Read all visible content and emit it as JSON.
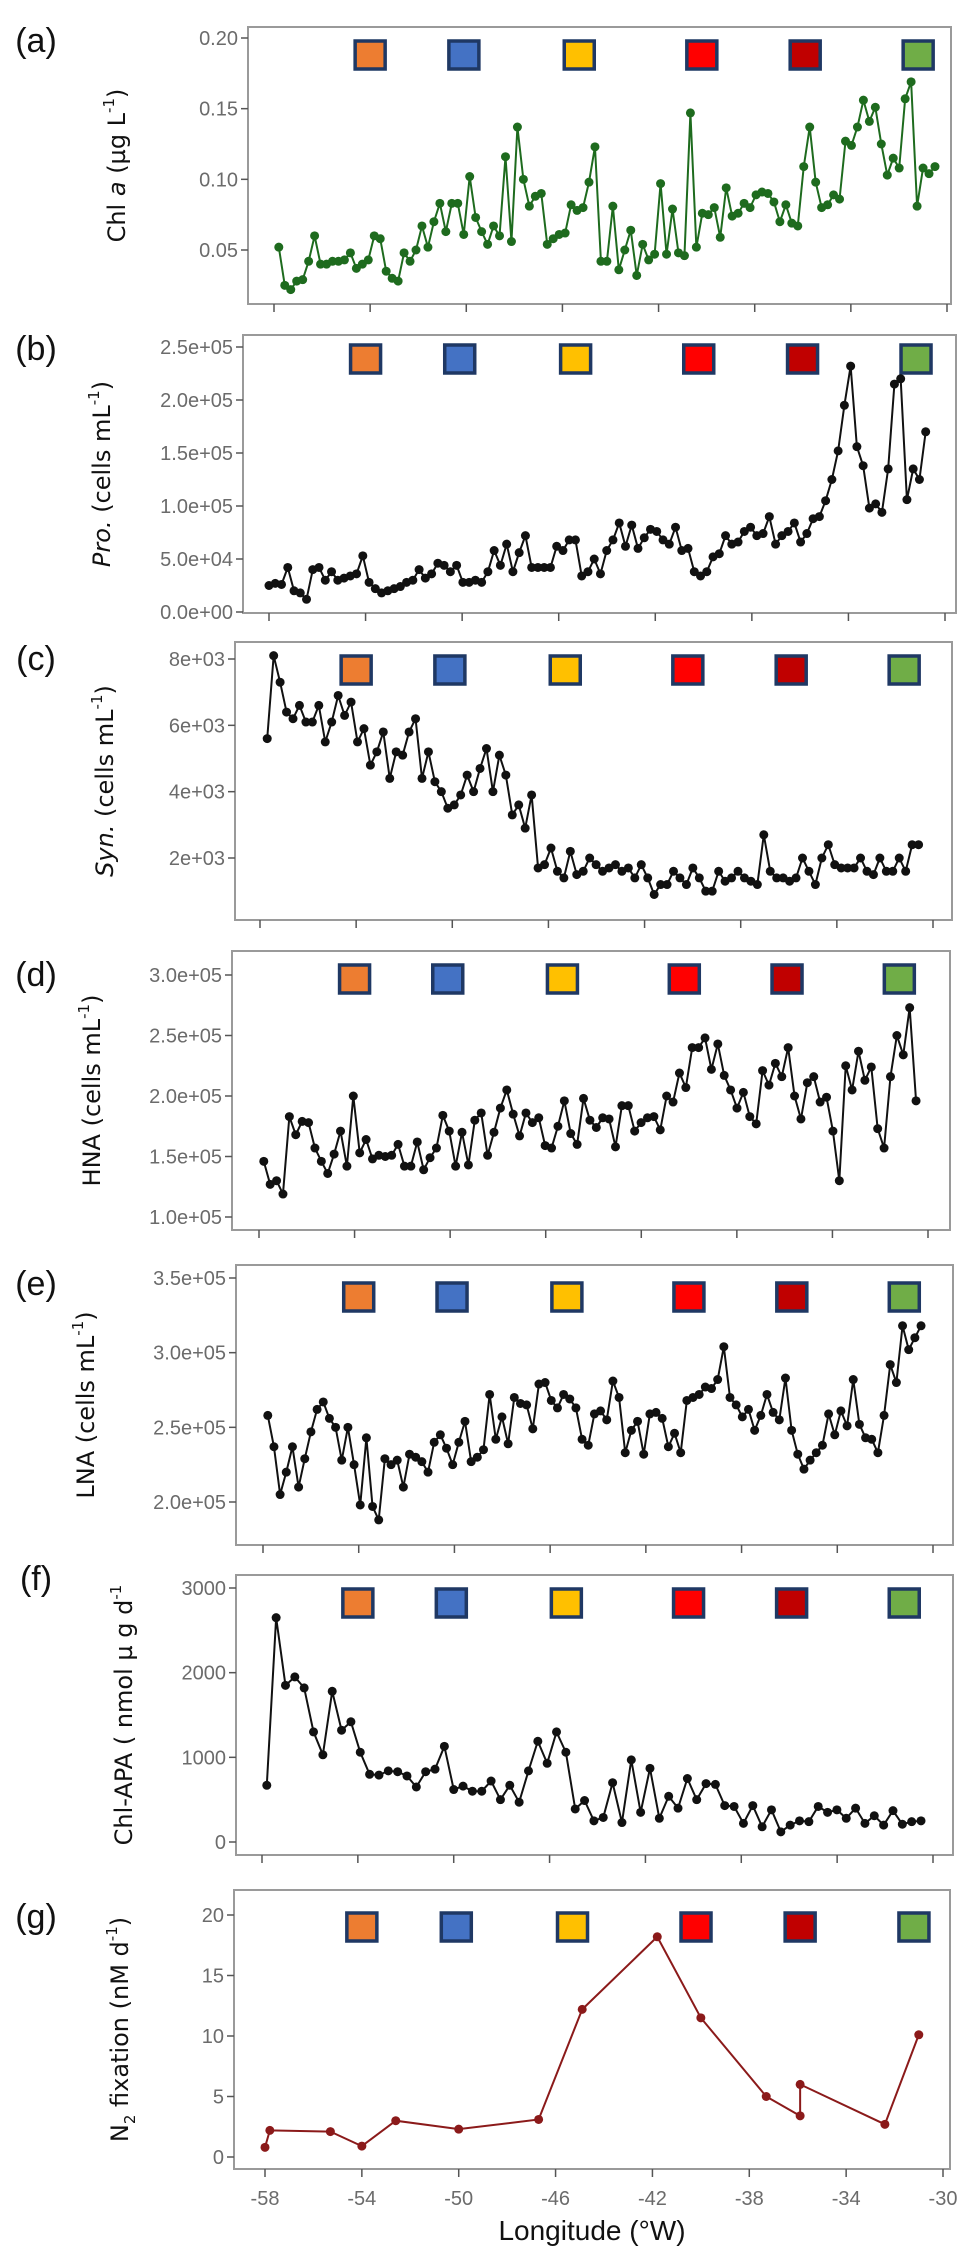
{
  "chart_data": [
    {
      "type": "line",
      "panel": "(a)",
      "ylabel": [
        {
          "t": "Chl "
        },
        {
          "t": "a",
          "i": true
        },
        {
          "t": " (µg L"
        },
        {
          "t": "-1",
          "sup": true
        },
        {
          "t": ")"
        }
      ],
      "yticks": [
        0.05,
        0.1,
        0.15,
        0.2
      ],
      "ytick_labels": [
        "0.05",
        "0.10",
        "0.15",
        "0.20"
      ],
      "color": "#1e6b1e",
      "x_first": -57.8,
      "x_last": -30.5,
      "values": [
        0.052,
        0.025,
        0.022,
        0.028,
        0.029,
        0.042,
        0.06,
        0.04,
        0.04,
        0.042,
        0.042,
        0.043,
        0.048,
        0.037,
        0.04,
        0.043,
        0.06,
        0.058,
        0.035,
        0.03,
        0.028,
        0.048,
        0.042,
        0.05,
        0.067,
        0.052,
        0.07,
        0.083,
        0.063,
        0.083,
        0.083,
        0.061,
        0.102,
        0.073,
        0.063,
        0.054,
        0.067,
        0.06,
        0.116,
        0.056,
        0.137,
        0.1,
        0.081,
        0.088,
        0.09,
        0.054,
        0.058,
        0.061,
        0.062,
        0.082,
        0.078,
        0.08,
        0.098,
        0.123,
        0.042,
        0.042,
        0.081,
        0.036,
        0.05,
        0.064,
        0.032,
        0.054,
        0.043,
        0.047,
        0.097,
        0.047,
        0.079,
        0.048,
        0.046,
        0.147,
        0.052,
        0.076,
        0.075,
        0.08,
        0.059,
        0.094,
        0.074,
        0.076,
        0.083,
        0.08,
        0.089,
        0.091,
        0.09,
        0.084,
        0.07,
        0.082,
        0.069,
        0.067,
        0.109,
        0.137,
        0.098,
        0.08,
        0.082,
        0.089,
        0.086,
        0.127,
        0.124,
        0.137,
        0.156,
        0.141,
        0.151,
        0.125,
        0.103,
        0.115,
        0.108,
        0.157,
        0.169,
        0.081,
        0.108,
        0.104,
        0.109
      ]
    },
    {
      "type": "line",
      "panel": "(b)",
      "ylabel": [
        {
          "t": "Pro.",
          "i": true
        },
        {
          "t": " (cells mL"
        },
        {
          "t": "-1",
          "sup": true
        },
        {
          "t": ")"
        }
      ],
      "yticks": [
        0,
        50000,
        100000,
        150000,
        200000,
        250000
      ],
      "ytick_labels": [
        "0.0e+00",
        "5.0e+04",
        "1.0e+05",
        "1.5e+05",
        "2.0e+05",
        "2.5e+05"
      ],
      "color": "#111111",
      "x_first": -58.0,
      "x_last": -30.8,
      "values": [
        25000,
        27000,
        26000,
        42000,
        20000,
        18000,
        12000,
        40000,
        42000,
        30000,
        38000,
        30000,
        32000,
        34000,
        36000,
        53000,
        28000,
        22000,
        18000,
        20000,
        22000,
        24000,
        28000,
        30000,
        40000,
        32000,
        36000,
        46000,
        44000,
        38000,
        44000,
        28000,
        28000,
        30000,
        28000,
        38000,
        58000,
        44000,
        64000,
        38000,
        56000,
        72000,
        42000,
        42000,
        42000,
        42000,
        62000,
        58000,
        68000,
        68000,
        34000,
        38000,
        50000,
        36000,
        58000,
        68000,
        84000,
        62000,
        82000,
        60000,
        70000,
        78000,
        76000,
        68000,
        64000,
        80000,
        58000,
        60000,
        38000,
        34000,
        38000,
        52000,
        55000,
        72000,
        64000,
        66000,
        76000,
        80000,
        72000,
        74000,
        90000,
        64000,
        72000,
        76000,
        84000,
        66000,
        74000,
        88000,
        90000,
        105000,
        125000,
        152000,
        195000,
        232000,
        156000,
        138000,
        98000,
        102000,
        94000,
        135000,
        215000,
        220000,
        106000,
        135000,
        125000,
        170000
      ]
    },
    {
      "type": "line",
      "panel": "(c)",
      "ylabel": [
        {
          "t": "Syn.",
          "i": true
        },
        {
          "t": " (cells mL"
        },
        {
          "t": "-1",
          "sup": true
        },
        {
          "t": ")"
        }
      ],
      "yticks": [
        2000,
        4000,
        6000,
        8000
      ],
      "ytick_labels": [
        "2e+03",
        "4e+03",
        "6e+03",
        "8e+03"
      ],
      "color": "#111111",
      "x_first": -57.7,
      "x_last": -30.6,
      "values": [
        5600,
        8100,
        7300,
        6400,
        6200,
        6600,
        6100,
        6100,
        6600,
        5500,
        6100,
        6900,
        6300,
        6700,
        5500,
        5900,
        4800,
        5200,
        5800,
        4400,
        5200,
        5100,
        5800,
        6200,
        4400,
        5200,
        4300,
        4000,
        3500,
        3600,
        3900,
        4500,
        4000,
        4700,
        5300,
        4000,
        5100,
        4500,
        3300,
        3600,
        2900,
        3900,
        1700,
        1800,
        2300,
        1600,
        1400,
        2200,
        1500,
        1600,
        2000,
        1800,
        1600,
        1700,
        1800,
        1600,
        1700,
        1400,
        1800,
        1400,
        900,
        1200,
        1200,
        1600,
        1400,
        1200,
        1700,
        1400,
        1000,
        1000,
        1600,
        1300,
        1400,
        1600,
        1400,
        1300,
        1200,
        2700,
        1600,
        1400,
        1400,
        1300,
        1400,
        2000,
        1600,
        1200,
        2000,
        2400,
        1800,
        1700,
        1700,
        1700,
        2000,
        1600,
        1500,
        2000,
        1600,
        1600,
        2000,
        1600,
        2400,
        2400
      ]
    },
    {
      "type": "line",
      "panel": "(d)",
      "ylabel": [
        {
          "t": "HNA (cells mL"
        },
        {
          "t": "-1",
          "sup": true
        },
        {
          "t": ")"
        }
      ],
      "yticks": [
        100000,
        150000,
        200000,
        250000,
        300000
      ],
      "ytick_labels": [
        "1.0e+05",
        "1.5e+05",
        "2.0e+05",
        "2.5e+05",
        "3.0e+05"
      ],
      "color": "#111111",
      "x_first": -57.8,
      "x_last": -30.5,
      "values": [
        146000,
        127000,
        130000,
        119000,
        183000,
        168000,
        179000,
        178000,
        157000,
        146000,
        136000,
        152000,
        171000,
        142000,
        200000,
        153000,
        164000,
        148000,
        151000,
        150000,
        151000,
        160000,
        142000,
        142000,
        162000,
        139000,
        149000,
        157000,
        184000,
        171000,
        142000,
        170000,
        143000,
        180000,
        186000,
        151000,
        170000,
        190000,
        205000,
        185000,
        167000,
        186000,
        178000,
        182000,
        159000,
        157000,
        175000,
        196000,
        169000,
        160000,
        198000,
        180000,
        174000,
        182000,
        181000,
        158000,
        192000,
        192000,
        171000,
        178000,
        182000,
        183000,
        172000,
        200000,
        195000,
        219000,
        207000,
        240000,
        240000,
        248000,
        222000,
        243000,
        217000,
        205000,
        190000,
        203000,
        183000,
        177000,
        221000,
        209000,
        227000,
        216000,
        240000,
        200000,
        181000,
        211000,
        216000,
        195000,
        199000,
        171000,
        130000,
        225000,
        205000,
        237000,
        213000,
        224000,
        173000,
        157000,
        216000,
        250000,
        234000,
        273000,
        196000
      ]
    },
    {
      "type": "line",
      "panel": "(e)",
      "ylabel": [
        {
          "t": "LNA (cells mL"
        },
        {
          "t": "-1",
          "sup": true
        },
        {
          "t": ")"
        }
      ],
      "yticks": [
        200000,
        250000,
        300000,
        350000
      ],
      "ytick_labels": [
        "2.0e+05",
        "2.5e+05",
        "3.0e+05",
        "3.5e+05"
      ],
      "color": "#111111",
      "x_first": -57.8,
      "x_last": -30.5,
      "values": [
        258000,
        237000,
        205000,
        220000,
        237000,
        210000,
        229000,
        247000,
        262000,
        267000,
        256000,
        250000,
        228000,
        250000,
        225000,
        198000,
        243000,
        197000,
        188000,
        229000,
        225000,
        228000,
        210000,
        232000,
        230000,
        227000,
        220000,
        240000,
        245000,
        236000,
        225000,
        240000,
        254000,
        227000,
        230000,
        235000,
        272000,
        242000,
        257000,
        239000,
        270000,
        266000,
        265000,
        249000,
        279000,
        280000,
        268000,
        263000,
        272000,
        269000,
        263000,
        242000,
        238000,
        259000,
        261000,
        255000,
        281000,
        270000,
        233000,
        248000,
        254000,
        232000,
        259000,
        260000,
        256000,
        237000,
        246000,
        233000,
        268000,
        270000,
        272000,
        277000,
        276000,
        282000,
        304000,
        270000,
        265000,
        257000,
        262000,
        248000,
        258000,
        272000,
        260000,
        255000,
        283000,
        248000,
        232000,
        222000,
        228000,
        233000,
        238000,
        259000,
        245000,
        261000,
        251000,
        282000,
        252000,
        243000,
        242000,
        233000,
        258000,
        292000,
        280000,
        318000,
        302000,
        310000,
        318000
      ]
    },
    {
      "type": "line",
      "panel": "(f)",
      "ylabel": [
        {
          "t": "Chl-APA ( nmol µ g d"
        },
        {
          "t": "-1",
          "sup": true
        }
      ],
      "yticks": [
        0,
        1000,
        2000,
        3000
      ],
      "ytick_labels": [
        "0",
        "1000",
        "2000",
        "3000"
      ],
      "color": "#111111",
      "x_first": -57.8,
      "x_last": -30.5,
      "values": [
        670,
        2650,
        1850,
        1950,
        1820,
        1300,
        1030,
        1780,
        1320,
        1420,
        1060,
        800,
        790,
        840,
        830,
        780,
        650,
        830,
        860,
        1130,
        620,
        660,
        600,
        600,
        720,
        500,
        670,
        470,
        840,
        1190,
        930,
        1300,
        1060,
        390,
        490,
        250,
        290,
        700,
        230,
        970,
        350,
        870,
        280,
        540,
        400,
        750,
        500,
        690,
        680,
        430,
        420,
        220,
        430,
        180,
        380,
        120,
        200,
        250,
        240,
        420,
        350,
        380,
        280,
        400,
        220,
        310,
        200,
        370,
        210,
        240,
        250
      ]
    },
    {
      "type": "line",
      "panel": "(g)",
      "ylabel": [
        {
          "t": "N"
        },
        {
          "t": "2",
          "sub": true
        },
        {
          "t": " fixation (nM d"
        },
        {
          "t": "-1",
          "sup": true
        },
        {
          "t": ")"
        }
      ],
      "yticks": [
        0,
        5,
        10,
        15,
        20
      ],
      "ytick_labels": [
        "0",
        "5",
        "10",
        "15",
        "20"
      ],
      "color": "#8b1a1a",
      "x": [
        -58.0,
        -57.8,
        -55.3,
        -54.0,
        -52.6,
        -50.0,
        -46.7,
        -44.9,
        -41.8,
        -40.0,
        -37.3,
        -35.9,
        -35.9,
        -32.4,
        -31.0
      ],
      "values": [
        0.8,
        2.2,
        2.1,
        0.9,
        3.0,
        2.3,
        3.1,
        12.2,
        18.2,
        11.5,
        5.0,
        3.4,
        6.0,
        2.7,
        10.1
      ]
    }
  ],
  "shared": {
    "xlabel": "Longitude (°W)",
    "xticks": [
      -58,
      -54,
      -50,
      -46,
      -42,
      -38,
      -34,
      -30
    ],
    "xtick_labels": [
      "-58",
      "-54",
      "-50",
      "-46",
      "-42",
      "-38",
      "-34",
      "-30"
    ],
    "legend_markers": [
      {
        "lon": -54.0,
        "color": "#ED7D31"
      },
      {
        "lon": -50.1,
        "color": "#4472C4"
      },
      {
        "lon": -45.3,
        "color": "#FFC000"
      },
      {
        "lon": -40.2,
        "color": "#FF0000"
      },
      {
        "lon": -35.9,
        "color": "#C00000"
      },
      {
        "lon": -31.2,
        "color": "#70AD47"
      }
    ],
    "marker_border": "#1F3864"
  }
}
